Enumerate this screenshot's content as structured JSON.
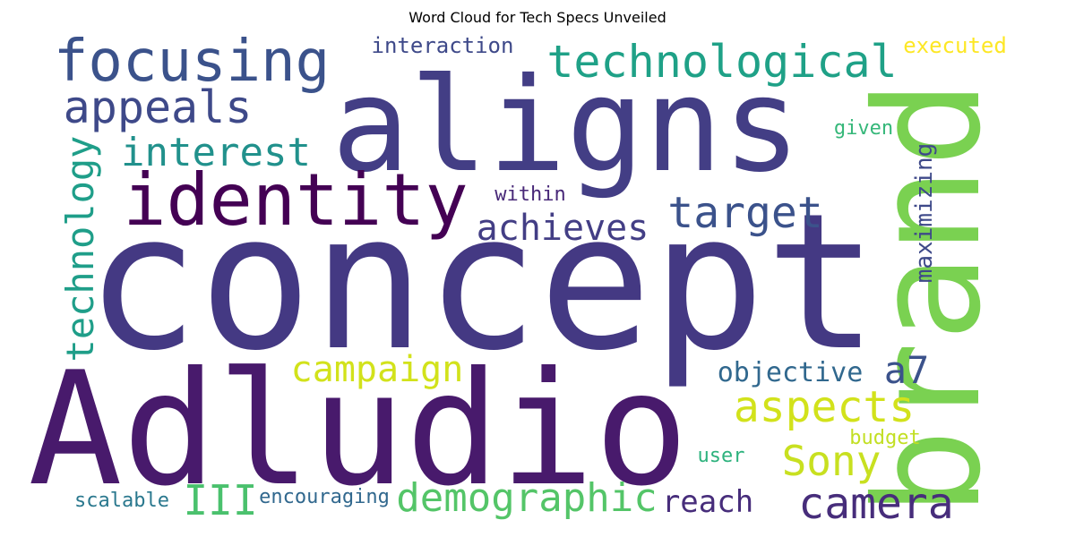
{
  "chart_data": {
    "type": "wordcloud",
    "title": "Word Cloud for Tech Specs Unveiled",
    "words": [
      {
        "text": "concept",
        "weight": 1.0,
        "color": "#443983"
      },
      {
        "text": "aligns",
        "weight": 0.78,
        "color": "#433e85"
      },
      {
        "text": "Adludio",
        "weight": 0.92,
        "color": "#481a6c"
      },
      {
        "text": "brand",
        "weight": 0.88,
        "color": "#7ad151"
      },
      {
        "text": "identity",
        "weight": 0.48,
        "color": "#440154"
      },
      {
        "text": "focusing",
        "weight": 0.42,
        "color": "#3b528b"
      },
      {
        "text": "technological",
        "weight": 0.32,
        "color": "#1fa187"
      },
      {
        "text": "appeals",
        "weight": 0.3,
        "color": "#3e4989"
      },
      {
        "text": "interest",
        "weight": 0.26,
        "color": "#21918c"
      },
      {
        "text": "technology",
        "weight": 0.26,
        "color": "#1f9e89"
      },
      {
        "text": "target",
        "weight": 0.3,
        "color": "#3b528b"
      },
      {
        "text": "achieves",
        "weight": 0.26,
        "color": "#433e85"
      },
      {
        "text": "campaign",
        "weight": 0.24,
        "color": "#d2e21b"
      },
      {
        "text": "aspects",
        "weight": 0.3,
        "color": "#d2e21b"
      },
      {
        "text": "Sony",
        "weight": 0.3,
        "color": "#c8e020"
      },
      {
        "text": "camera",
        "weight": 0.28,
        "color": "#472d7b"
      },
      {
        "text": "demographic",
        "weight": 0.3,
        "color": "#54c568"
      },
      {
        "text": "III",
        "weight": 0.28,
        "color": "#4ac16d"
      },
      {
        "text": "a7",
        "weight": 0.28,
        "color": "#3b528b"
      },
      {
        "text": "objective",
        "weight": 0.18,
        "color": "#31688e"
      },
      {
        "text": "reach",
        "weight": 0.18,
        "color": "#472d7b"
      },
      {
        "text": "maximizing",
        "weight": 0.16,
        "color": "#3e4989"
      },
      {
        "text": "interaction",
        "weight": 0.14,
        "color": "#3e4989"
      },
      {
        "text": "executed",
        "weight": 0.14,
        "color": "#fde725"
      },
      {
        "text": "given",
        "weight": 0.13,
        "color": "#35b779"
      },
      {
        "text": "within",
        "weight": 0.13,
        "color": "#482878"
      },
      {
        "text": "budget",
        "weight": 0.13,
        "color": "#c2df23"
      },
      {
        "text": "user",
        "weight": 0.13,
        "color": "#2db27d"
      },
      {
        "text": "scalable",
        "weight": 0.13,
        "color": "#2a788e"
      },
      {
        "text": "encouraging",
        "weight": 0.13,
        "color": "#31688e"
      }
    ]
  }
}
